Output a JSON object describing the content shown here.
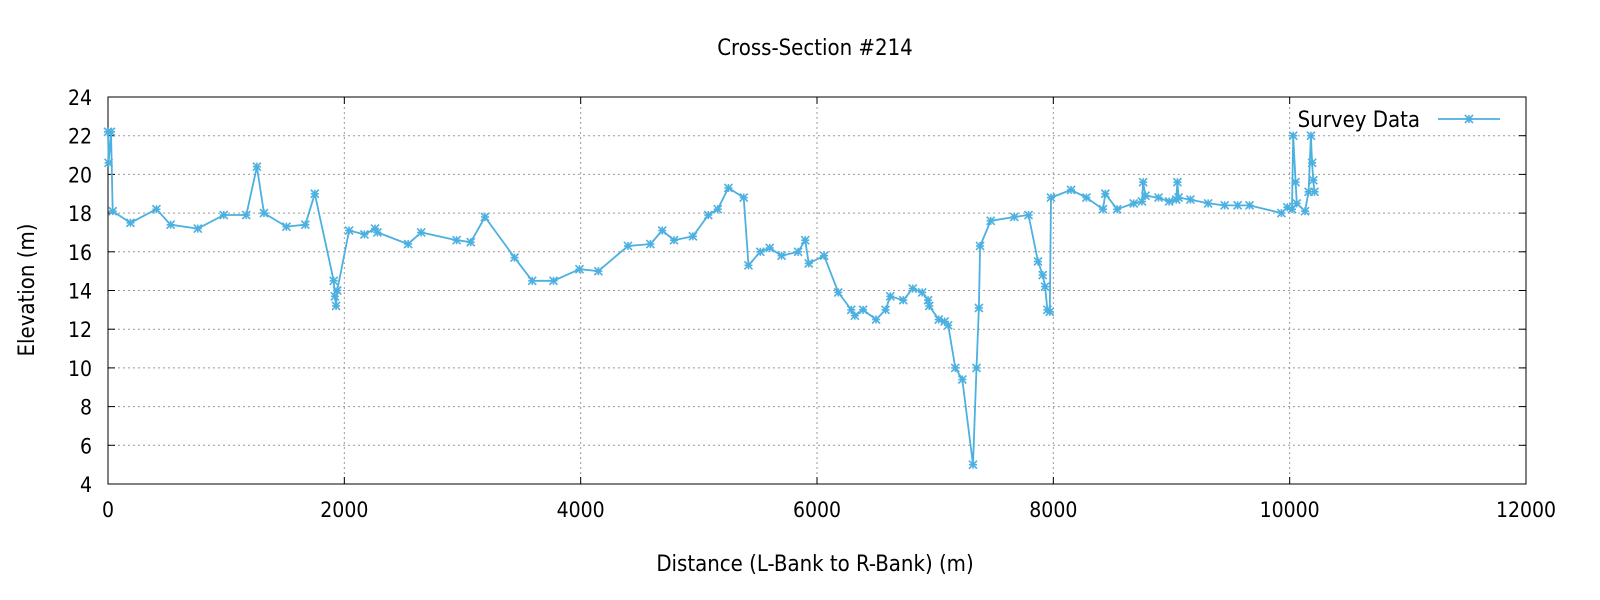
{
  "chart_data": {
    "type": "line",
    "title": "Cross-Section #214",
    "xlabel": "Distance (L-Bank to R-Bank) (m)",
    "ylabel": "Elevation (m)",
    "xlim": [
      0,
      12000
    ],
    "ylim": [
      4,
      24
    ],
    "x_ticks": [
      0,
      2000,
      4000,
      6000,
      8000,
      10000,
      12000
    ],
    "y_ticks": [
      4,
      6,
      8,
      10,
      12,
      14,
      16,
      18,
      20,
      22,
      24
    ],
    "grid": true,
    "legend_position": "top-right",
    "series": [
      {
        "name": "Survey Data",
        "color": "#4cb0e0",
        "marker": "asterisk",
        "points": [
          [
            0,
            22.2
          ],
          [
            5,
            20.6
          ],
          [
            25,
            22.2
          ],
          [
            40,
            18.1
          ],
          [
            190,
            17.5
          ],
          [
            410,
            18.2
          ],
          [
            530,
            17.4
          ],
          [
            760,
            17.2
          ],
          [
            980,
            17.9
          ],
          [
            1170,
            17.9
          ],
          [
            1260,
            20.4
          ],
          [
            1320,
            18.0
          ],
          [
            1510,
            17.3
          ],
          [
            1670,
            17.4
          ],
          [
            1750,
            19.0
          ],
          [
            1910,
            14.5
          ],
          [
            1920,
            13.7
          ],
          [
            1930,
            13.2
          ],
          [
            1940,
            14.0
          ],
          [
            2040,
            17.1
          ],
          [
            2170,
            16.9
          ],
          [
            2260,
            17.2
          ],
          [
            2280,
            17.0
          ],
          [
            2540,
            16.4
          ],
          [
            2650,
            17.0
          ],
          [
            2950,
            16.6
          ],
          [
            3070,
            16.5
          ],
          [
            3190,
            17.8
          ],
          [
            3440,
            15.7
          ],
          [
            3590,
            14.5
          ],
          [
            3770,
            14.5
          ],
          [
            3990,
            15.1
          ],
          [
            4150,
            15.0
          ],
          [
            4400,
            16.3
          ],
          [
            4590,
            16.4
          ],
          [
            4690,
            17.1
          ],
          [
            4790,
            16.6
          ],
          [
            4950,
            16.8
          ],
          [
            5080,
            17.9
          ],
          [
            5160,
            18.2
          ],
          [
            5250,
            19.3
          ],
          [
            5380,
            18.8
          ],
          [
            5420,
            15.3
          ],
          [
            5520,
            16.0
          ],
          [
            5600,
            16.2
          ],
          [
            5700,
            15.8
          ],
          [
            5840,
            16.0
          ],
          [
            5900,
            16.6
          ],
          [
            5930,
            15.4
          ],
          [
            6060,
            15.8
          ],
          [
            6180,
            13.9
          ],
          [
            6290,
            13.0
          ],
          [
            6320,
            12.7
          ],
          [
            6390,
            13.0
          ],
          [
            6500,
            12.5
          ],
          [
            6580,
            13.0
          ],
          [
            6620,
            13.7
          ],
          [
            6730,
            13.5
          ],
          [
            6810,
            14.1
          ],
          [
            6890,
            13.9
          ],
          [
            6940,
            13.5
          ],
          [
            6950,
            13.2
          ],
          [
            7030,
            12.5
          ],
          [
            7080,
            12.4
          ],
          [
            7110,
            12.2
          ],
          [
            7170,
            10.0
          ],
          [
            7230,
            9.4
          ],
          [
            7320,
            5.0
          ],
          [
            7350,
            10.0
          ],
          [
            7370,
            13.1
          ],
          [
            7380,
            16.3
          ],
          [
            7470,
            17.6
          ],
          [
            7670,
            17.8
          ],
          [
            7790,
            17.9
          ],
          [
            7870,
            15.5
          ],
          [
            7910,
            14.8
          ],
          [
            7930,
            14.2
          ],
          [
            7950,
            13.0
          ],
          [
            7970,
            12.9
          ],
          [
            7980,
            18.8
          ],
          [
            8150,
            19.2
          ],
          [
            8280,
            18.8
          ],
          [
            8420,
            18.2
          ],
          [
            8440,
            19.0
          ],
          [
            8540,
            18.2
          ],
          [
            8680,
            18.5
          ],
          [
            8750,
            18.6
          ],
          [
            8760,
            19.6
          ],
          [
            8780,
            18.9
          ],
          [
            8890,
            18.8
          ],
          [
            8980,
            18.6
          ],
          [
            9040,
            18.7
          ],
          [
            9050,
            19.6
          ],
          [
            9060,
            18.8
          ],
          [
            9160,
            18.7
          ],
          [
            9310,
            18.5
          ],
          [
            9450,
            18.4
          ],
          [
            9560,
            18.4
          ],
          [
            9660,
            18.4
          ],
          [
            9930,
            18.0
          ],
          [
            9980,
            18.3
          ],
          [
            10020,
            18.2
          ],
          [
            10030,
            22.0
          ],
          [
            10050,
            19.6
          ],
          [
            10060,
            18.5
          ],
          [
            10130,
            18.1
          ],
          [
            10160,
            19.1
          ],
          [
            10180,
            22.0
          ],
          [
            10190,
            20.6
          ],
          [
            10200,
            19.7
          ],
          [
            10210,
            19.1
          ]
        ]
      }
    ]
  }
}
